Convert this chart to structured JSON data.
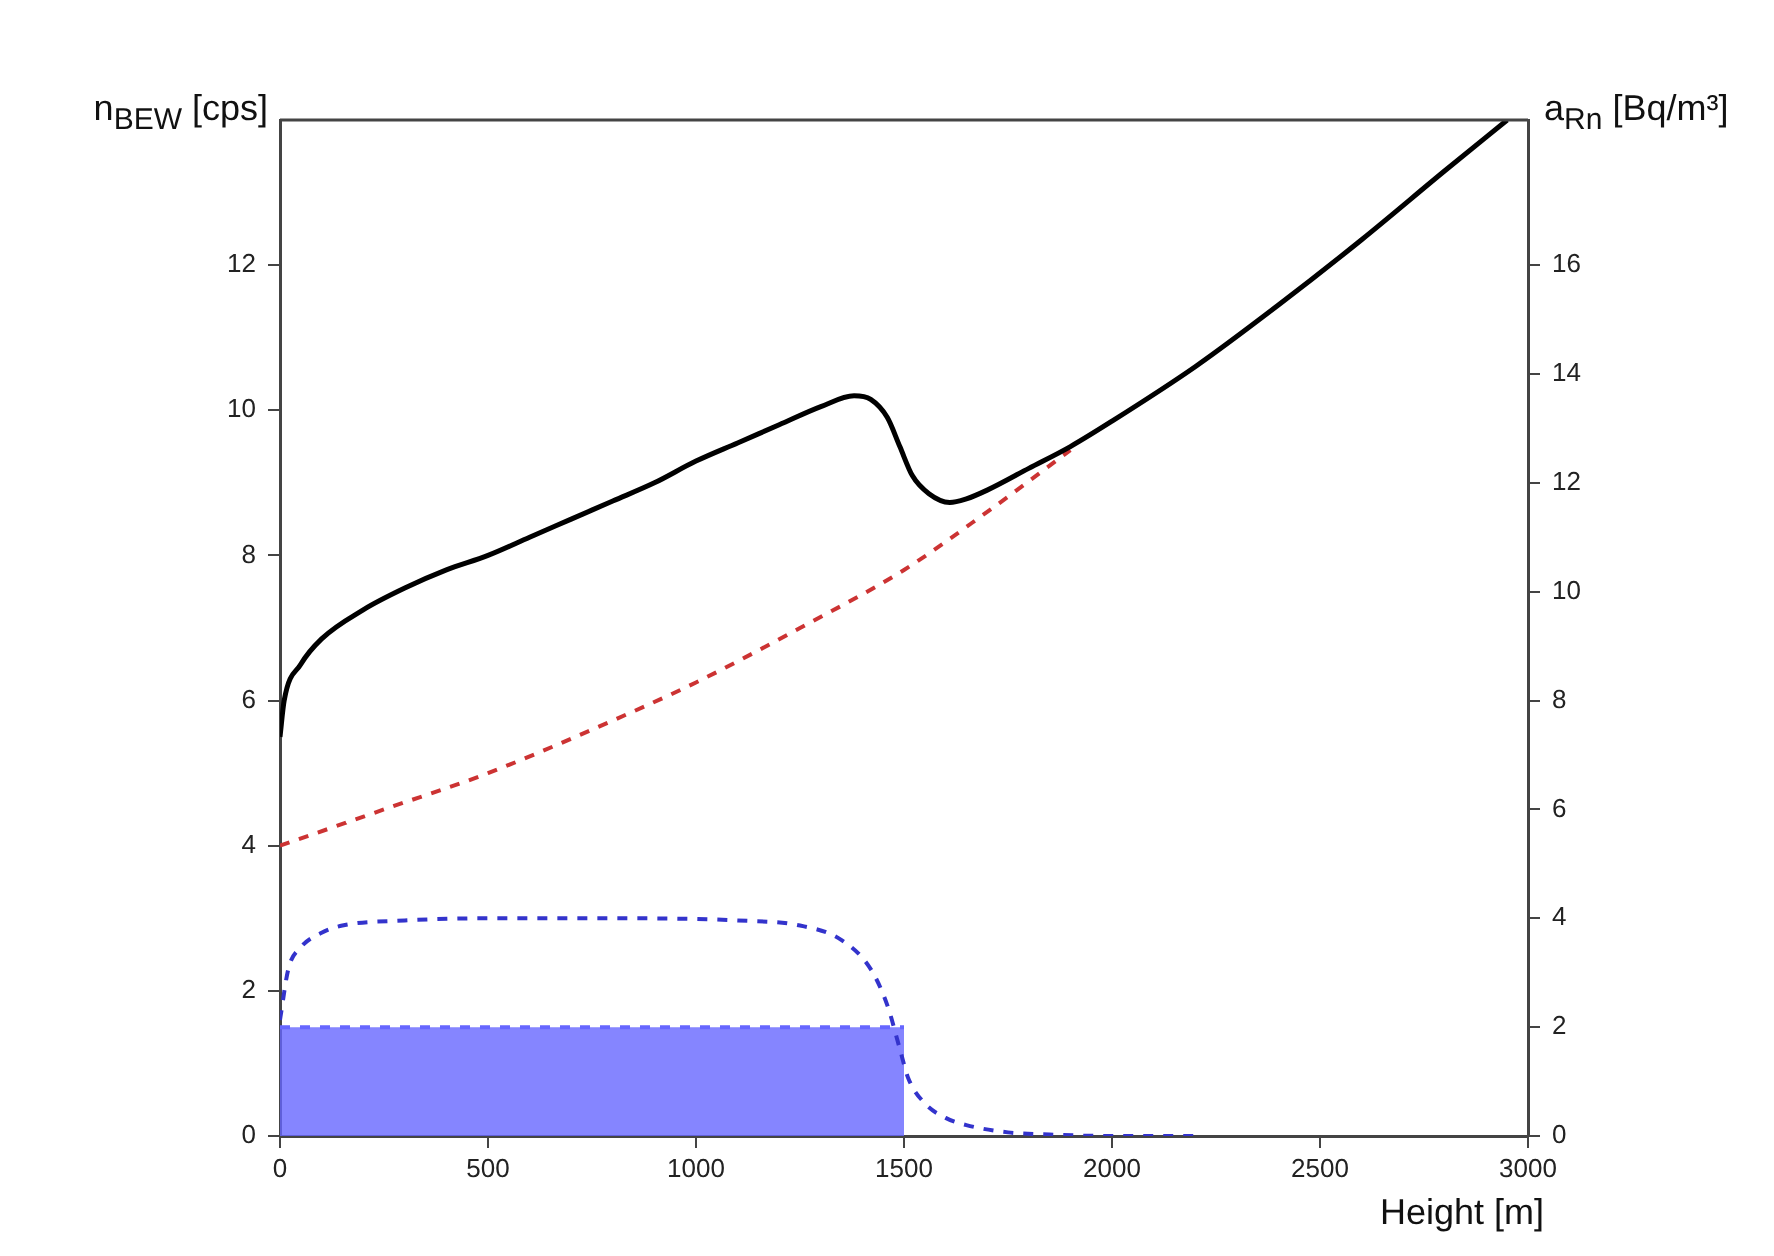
{
  "chart_data": {
    "type": "line",
    "xlabel": "Height [m]",
    "ylabel": "n$_{BEW}$ [cps]",
    "y2label": "a$_{Rn}$ [Bq/m³]",
    "xlim": [
      0,
      3000
    ],
    "xticks": [
      0,
      500,
      1000,
      1500,
      2000,
      2500,
      3000
    ],
    "ylim": [
      0,
      14
    ],
    "yticks": [
      0,
      2,
      4,
      6,
      8,
      10,
      12
    ],
    "y2lim": [
      0,
      18.67
    ],
    "y2ticks": [
      0,
      2,
      4,
      6,
      8,
      10,
      12,
      14,
      16
    ],
    "grid": false,
    "legend": false,
    "marker": "none",
    "series": [
      {
        "color": "#000000",
        "line_style": "solid",
        "x": [
          0,
          10,
          50,
          100,
          200,
          300,
          400,
          500,
          600,
          700,
          800,
          900,
          1000,
          1100,
          1200,
          1300,
          1380,
          1420,
          1460,
          1490,
          1520,
          1560,
          1610,
          1650,
          1700,
          1800,
          1900,
          2000,
          2200,
          2400,
          2600,
          2800,
          2950
        ],
        "values": [
          5.5,
          6.0,
          6.5,
          6.85,
          7.25,
          7.55,
          7.8,
          8.0,
          8.25,
          8.5,
          8.75,
          9.0,
          9.3,
          9.55,
          9.8,
          10.05,
          10.2,
          10.15,
          9.9,
          9.5,
          9.1,
          8.85,
          8.73,
          8.78,
          8.9,
          9.2,
          9.5,
          9.85,
          10.6,
          11.45,
          12.35,
          13.3,
          14.0
        ]
      },
      {
        "color": "#cc3333",
        "line_style": "dashed",
        "x": [
          0,
          250,
          500,
          750,
          1000,
          1250,
          1500,
          1700,
          1900
        ],
        "values": [
          4.0,
          4.5,
          5.0,
          5.6,
          6.25,
          7.0,
          7.8,
          8.6,
          9.45
        ]
      },
      {
        "color": "#3333cc",
        "line_style": "dashed",
        "x": [
          0,
          20,
          50,
          100,
          150,
          300,
          500,
          800,
          1100,
          1250,
          1350,
          1420,
          1460,
          1490,
          1510,
          1550,
          1600,
          1650,
          1750,
          1850,
          2000,
          2200
        ],
        "values": [
          1.6,
          2.3,
          2.6,
          2.8,
          2.9,
          2.97,
          3.0,
          3.0,
          2.97,
          2.9,
          2.7,
          2.3,
          1.8,
          1.2,
          0.8,
          0.45,
          0.25,
          0.15,
          0.05,
          0.02,
          0,
          0
        ]
      },
      {
        "type": "area",
        "color": "#6666ff",
        "line_style": "dashed",
        "x": [
          0,
          1500
        ],
        "values": [
          1.5,
          1.5
        ]
      }
    ]
  }
}
